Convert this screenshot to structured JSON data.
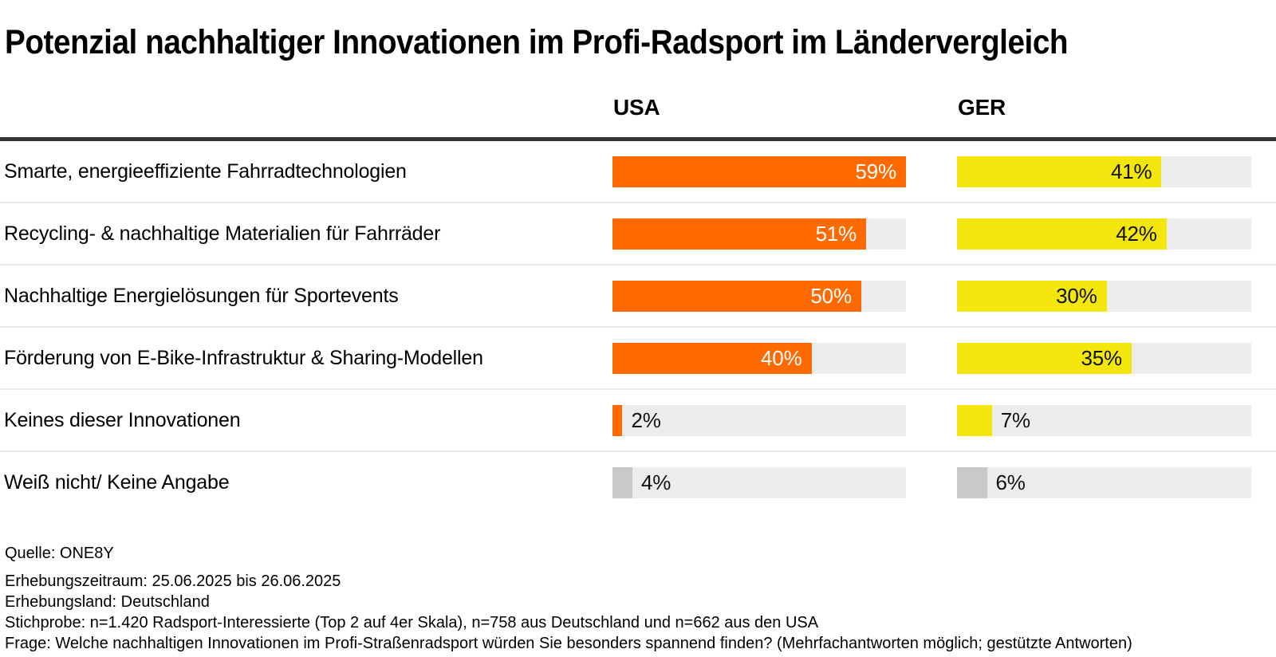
{
  "title": "Potenzial nachhaltiger Innovationen im Profi-Radsport im Ländervergleich",
  "column_headers": [
    "USA",
    "GER"
  ],
  "chart_data": {
    "type": "bar",
    "orientation": "horizontal",
    "unit": "%",
    "scale_max": 59,
    "grid": false,
    "legend_position": "column-headers-above-bars",
    "categories": [
      "Smarte, energieeffiziente Fahrradtechnologien",
      "Recycling- & nachhaltige Materialien für Fahrräder",
      "Nachhaltige Energielösungen für Sportevents",
      "Förderung von E-Bike-Infrastruktur & Sharing-Modellen",
      "Keines dieser Innovationen",
      "Weiß nicht/ Keine Angabe"
    ],
    "series": [
      {
        "name": "USA",
        "values": [
          59,
          51,
          50,
          40,
          2,
          4
        ],
        "bar_color": "#FF6A00",
        "inside_label_color": "#FFFFFF"
      },
      {
        "name": "GER",
        "values": [
          41,
          42,
          30,
          35,
          7,
          6
        ],
        "bar_color": "#F2E60D",
        "inside_label_color": "#111111"
      }
    ],
    "neutral_category_index": 5,
    "neutral_bar_color": "#C9C9C9"
  },
  "footer": {
    "source": "Quelle: ONE8Y",
    "meta_lines": [
      "Erhebungszeitraum: 25.06.2025 bis 26.06.2025",
      "Erhebungsland: Deutschland",
      "Stichprobe: n=1.420 Radsport-Interessierte (Top 2 auf 4er Skala), n=758 aus Deutschland und n=662 aus den USA",
      "Frage: Welche nachhaltigen Innovationen im Profi-Straßenradsport würden Sie besonders spannend finden? (Mehrfachantworten möglich; gestützte Antworten)"
    ]
  },
  "colors": {
    "background": "#FFFFFF",
    "track": "#ECECEC",
    "header_divider": "#333333",
    "row_separator": "#EBEBEB",
    "outside_label": "#111111",
    "text": "#000000"
  }
}
